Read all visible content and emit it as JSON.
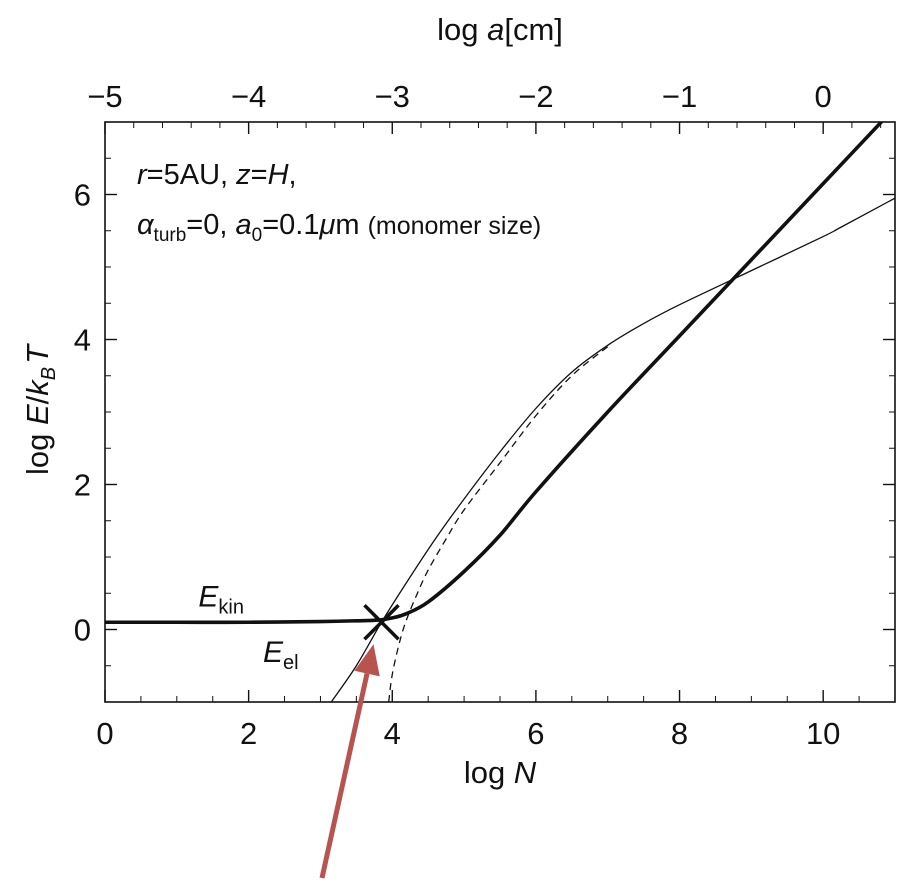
{
  "chart_data": {
    "type": "line",
    "xlabel": "log N",
    "ylabel": "log E/k_B T",
    "top_xlabel": "log a[cm]",
    "xlim": [
      0,
      11
    ],
    "ylim": [
      -1,
      7
    ],
    "top_xlim": [
      -5,
      0.5
    ],
    "x_ticks": [
      0,
      2,
      4,
      6,
      8,
      10
    ],
    "y_ticks": [
      0,
      2,
      4,
      6
    ],
    "top_ticks": [
      -5,
      -4,
      -3,
      -2,
      -1,
      0
    ],
    "x_tick_labels": [
      "0",
      "2",
      "4",
      "6",
      "8",
      "10"
    ],
    "y_tick_labels": [
      "0",
      "2",
      "4",
      "6"
    ],
    "top_tick_labels": [
      "−5",
      "−4",
      "−3",
      "−2",
      "−1",
      "0"
    ],
    "annotation_lines": [
      "r=5AU, z=H,",
      "αturb=0, a0=0.1μm"
    ],
    "annotation_note": "(monomer size)",
    "series": [
      {
        "name": "E_kin",
        "style": "thick solid",
        "x": [
          0,
          1,
          2,
          3,
          3.5,
          3.8,
          4.0,
          4.2,
          4.5,
          5.0,
          5.5,
          6.0,
          7.0,
          8.0,
          9.0,
          10.0,
          11.0
        ],
        "y": [
          0.1,
          0.1,
          0.1,
          0.11,
          0.12,
          0.13,
          0.16,
          0.22,
          0.38,
          0.8,
          1.3,
          1.9,
          3.0,
          4.05,
          5.1,
          6.15,
          7.2
        ]
      },
      {
        "name": "E_el",
        "style": "thin solid",
        "x": [
          3.15,
          3.5,
          3.85,
          4.2,
          4.6,
          5.0,
          5.5,
          6.0,
          6.5,
          7.0,
          7.5,
          8.0,
          9.0,
          10.0,
          10.25,
          11.0
        ],
        "y": [
          -1.0,
          -0.5,
          0.1,
          0.65,
          1.25,
          1.8,
          2.45,
          3.05,
          3.55,
          3.92,
          4.22,
          4.48,
          4.95,
          5.42,
          5.55,
          5.95
        ]
      },
      {
        "name": "dashed",
        "style": "thin dashed",
        "x": [
          3.95,
          4.0,
          4.1,
          4.2,
          4.35,
          4.5,
          4.75,
          5.0,
          5.5,
          6.0,
          6.5,
          7.0
        ],
        "y": [
          -1.0,
          -0.62,
          -0.18,
          0.14,
          0.5,
          0.82,
          1.25,
          1.65,
          2.3,
          2.95,
          3.5,
          3.9
        ]
      }
    ],
    "series_labels": [
      {
        "main": "E",
        "sub": "kin"
      },
      {
        "main": "E",
        "sub": "el"
      }
    ],
    "marker": {
      "type": "cross",
      "x": 3.85,
      "y": 0.1
    },
    "arrow": {
      "color": "#b85450",
      "target": {
        "x": 3.85,
        "y": 0.1
      }
    },
    "grid": false
  }
}
